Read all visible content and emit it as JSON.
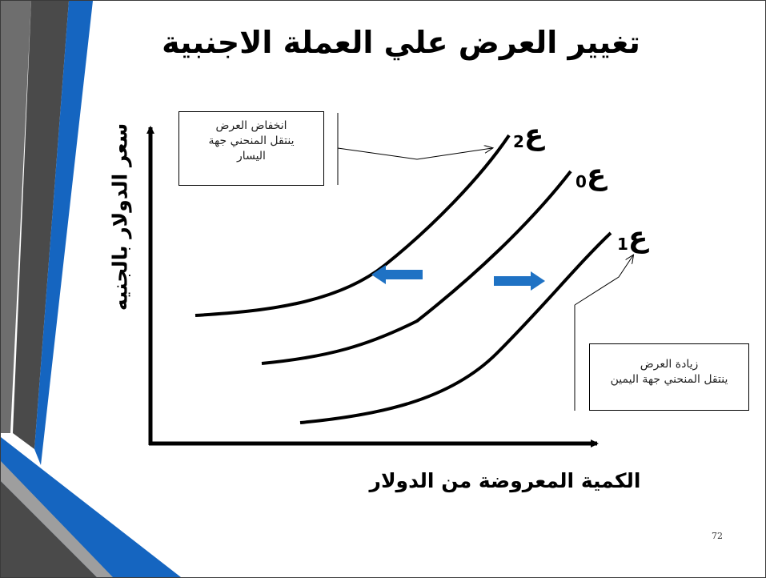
{
  "slide": {
    "title": "تغيير العرض علي العملة الاجنبية",
    "page_number": "72"
  },
  "axes": {
    "y_label": "سعر الدولار بالجنيه",
    "x_label": "الكمية المعروضة من الدولار"
  },
  "curves": {
    "e2": {
      "symbol": "ع",
      "subscript": "2"
    },
    "e0": {
      "symbol": "ع",
      "subscript": "0"
    },
    "e1": {
      "symbol": "ع",
      "subscript": "1"
    }
  },
  "notes": {
    "decrease": {
      "lines": [
        "انخفاض العرض",
        "ينتقل المنحني جهة",
        "اليسار"
      ]
    },
    "increase": {
      "lines": [
        "زيادة العرض",
        "ينتقل المنحني جهة اليمين"
      ]
    }
  },
  "colors": {
    "shift_arrow": "#1f72c4",
    "deco_blue": "#1565c0",
    "deco_dark": "#4a4a4a"
  }
}
